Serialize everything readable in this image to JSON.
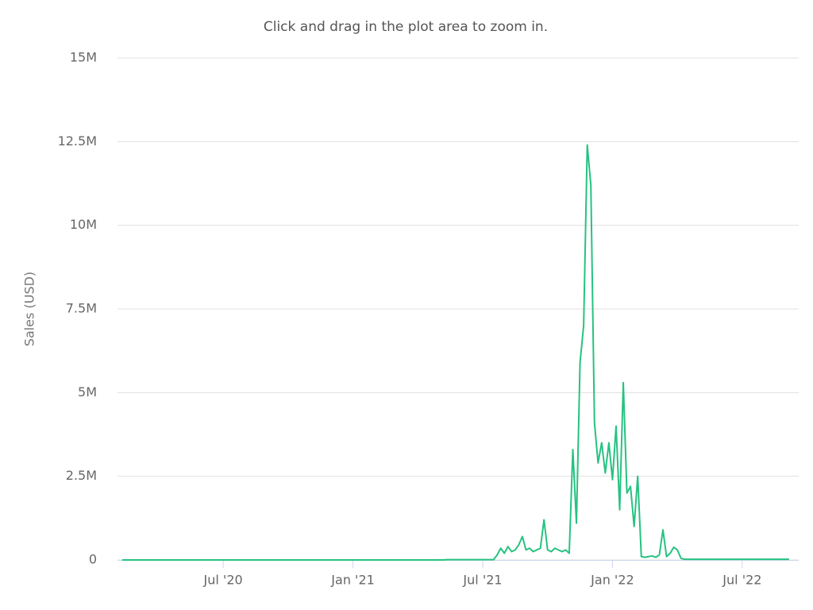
{
  "chart_data": {
    "type": "line",
    "subtitle": "Click and drag in the plot area to zoom in.",
    "y_label": "Sales (USD)",
    "ylim": [
      0,
      15000000
    ],
    "yticks": [
      0,
      {
        "value": 2500000,
        "label": "2.5M"
      },
      {
        "value": 5000000,
        "label": "5M"
      },
      {
        "value": 7500000,
        "label": "7.5M"
      },
      {
        "value": 10000000,
        "label": "10M"
      },
      {
        "value": 12500000,
        "label": "12.5M"
      },
      {
        "value": 15000000,
        "label": "15M"
      }
    ],
    "grid": true,
    "categories": [
      null,
      null,
      null,
      null,
      null,
      null,
      null,
      null,
      null,
      null,
      null,
      null,
      null,
      null,
      null,
      null,
      null,
      null,
      null,
      null,
      null,
      null,
      null,
      null,
      null,
      null,
      null,
      null,
      "Jul '20",
      null,
      null,
      null,
      null,
      null,
      null,
      null,
      null,
      null,
      null,
      null,
      null,
      null,
      null,
      null,
      null,
      null,
      null,
      null,
      null,
      null,
      null,
      null,
      null,
      null,
      null,
      null,
      null,
      null,
      null,
      null,
      null,
      null,
      null,
      null,
      "Jan '21",
      null,
      null,
      null,
      null,
      null,
      null,
      null,
      null,
      null,
      null,
      null,
      null,
      null,
      null,
      null,
      null,
      null,
      null,
      null,
      null,
      null,
      null,
      null,
      null,
      null,
      null,
      null,
      null,
      null,
      null,
      null,
      null,
      null,
      null,
      null,
      "Jul '21",
      null,
      null,
      null,
      null,
      null,
      null,
      null,
      null,
      null,
      null,
      null,
      null,
      null,
      null,
      null,
      null,
      null,
      null,
      null,
      null,
      null,
      null,
      null,
      null,
      null,
      null,
      null,
      null,
      null,
      null,
      null,
      null,
      null,
      null,
      null,
      "Jan '22",
      null,
      null,
      null,
      null,
      null,
      null,
      null,
      null,
      null,
      null,
      null,
      null,
      null,
      null,
      null,
      null,
      null,
      null,
      null,
      null,
      null,
      null,
      null,
      null,
      null,
      null,
      null,
      null,
      null,
      null,
      null,
      null,
      null,
      null,
      null,
      "Jul '22",
      null,
      null,
      null,
      null,
      null,
      null,
      null,
      null,
      null,
      null,
      null,
      null,
      null
    ],
    "series": [
      {
        "color": "#26c281",
        "values": [
          0,
          0,
          0,
          0,
          0,
          0,
          0,
          0,
          0,
          0,
          0,
          0,
          0,
          0,
          0,
          0,
          0,
          0,
          0,
          0,
          0,
          0,
          0,
          0,
          0,
          0,
          0,
          0,
          0,
          0,
          0,
          0,
          0,
          0,
          0,
          0,
          0,
          0,
          0,
          0,
          0,
          0,
          0,
          0,
          0,
          0,
          0,
          0,
          0,
          0,
          0,
          0,
          0,
          0,
          0,
          0,
          0,
          0,
          0,
          0,
          0,
          0,
          0,
          0,
          0,
          0,
          0,
          0,
          0,
          0,
          0,
          0,
          0,
          0,
          0,
          0,
          0,
          0,
          0,
          0,
          0,
          0,
          0,
          0,
          0,
          0,
          0,
          0,
          0,
          0,
          10000,
          10000,
          10000,
          10000,
          10000,
          10000,
          10000,
          10000,
          10000,
          10000,
          10000,
          10000,
          10000,
          10000,
          150000,
          350000,
          200000,
          400000,
          250000,
          300000,
          450000,
          700000,
          300000,
          350000,
          250000,
          300000,
          350000,
          1200000,
          300000,
          250000,
          350000,
          300000,
          250000,
          300000,
          200000,
          3300000,
          1100000,
          5900000,
          7000000,
          12400000,
          11200000,
          4100000,
          2900000,
          3500000,
          2600000,
          3500000,
          2400000,
          4000000,
          1500000,
          5300000,
          2000000,
          2200000,
          1000000,
          2500000,
          100000,
          80000,
          100000,
          120000,
          80000,
          150000,
          900000,
          100000,
          200000,
          380000,
          300000,
          50000,
          20000,
          20000,
          20000,
          20000,
          20000,
          20000,
          20000,
          20000,
          20000,
          20000,
          20000,
          20000,
          20000,
          20000,
          20000,
          20000,
          20000,
          20000,
          20000,
          20000,
          20000,
          20000,
          20000,
          20000,
          20000,
          20000,
          20000,
          20000,
          20000,
          20000
        ]
      }
    ]
  }
}
